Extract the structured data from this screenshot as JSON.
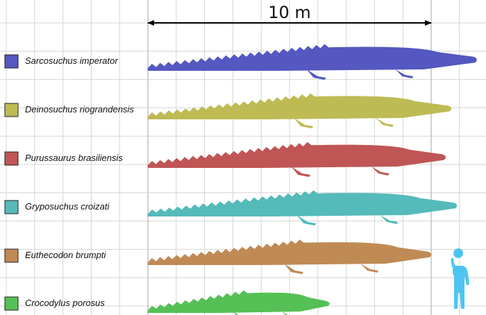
{
  "scale_bar": {
    "label": "10 m",
    "length_m": 10
  },
  "grid": {
    "shown": true,
    "cell_m": 1
  },
  "species": [
    {
      "name": "Sarcosuchus imperator",
      "color": "#5458c0",
      "length_m": 11.6
    },
    {
      "name": "Deinosuchus riograndensis",
      "color": "#bebb55",
      "length_m": 10.7
    },
    {
      "name": "Purussaurus brasiliensis",
      "color": "#c05555",
      "length_m": 10.5
    },
    {
      "name": "Gryposuchus croizati",
      "color": "#55baba",
      "length_m": 10.9
    },
    {
      "name": "Euthecodon brumpti",
      "color": "#c08a55",
      "length_m": 10.0
    },
    {
      "name": "Crocodylus porosus",
      "color": "#55c055",
      "length_m": 6.4
    }
  ],
  "human": {
    "color": "#4ec4f2",
    "icon": "human-figure-icon"
  }
}
